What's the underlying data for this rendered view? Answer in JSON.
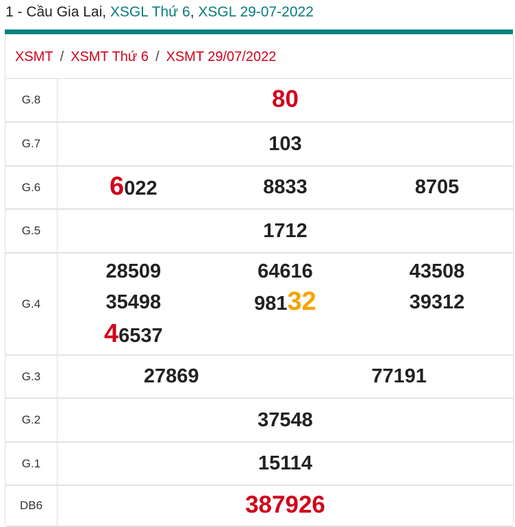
{
  "header": {
    "prefix": "1 - Cầu Gia Lai, ",
    "link1": "XSGL Thứ 6",
    "sep": ", ",
    "link2": "XSGL 29-07-2022"
  },
  "breadcrumb": [
    "XSMT",
    "XSMT Thứ 6",
    "XSMT 29/07/2022"
  ],
  "breadcrumb_sep": "/",
  "colors": {
    "accent": "#0a8282",
    "red": "#d0021b",
    "orange": "#f5a300"
  },
  "prizes": [
    {
      "label": "G.8",
      "cols": 1,
      "h": 64,
      "numbers": [
        [
          {
            "t": "80",
            "s": "big-red"
          }
        ]
      ]
    },
    {
      "label": "G.7",
      "cols": 1,
      "h": 64,
      "numbers": [
        [
          {
            "t": "103"
          }
        ]
      ]
    },
    {
      "label": "G.6",
      "cols": 3,
      "h": 63,
      "numbers": [
        [
          {
            "t": "6",
            "s": "red"
          },
          {
            "t": "022"
          }
        ],
        [
          {
            "t": "8833"
          }
        ],
        [
          {
            "t": "8705"
          }
        ]
      ]
    },
    {
      "label": "G.5",
      "cols": 1,
      "h": 64,
      "numbers": [
        [
          {
            "t": "1712"
          }
        ]
      ]
    },
    {
      "label": "G.4",
      "cols": 3,
      "h": 149,
      "numbers": [
        [
          {
            "t": "28509"
          }
        ],
        [
          {
            "t": "64616"
          }
        ],
        [
          {
            "t": "43508"
          }
        ],
        [
          {
            "t": "35498"
          }
        ],
        [
          {
            "t": "981"
          },
          {
            "t": "32",
            "s": "org"
          }
        ],
        [
          {
            "t": "39312"
          }
        ],
        [
          {
            "t": "4",
            "s": "red"
          },
          {
            "t": "6537"
          }
        ]
      ]
    },
    {
      "label": "G.3",
      "cols": 2,
      "h": 63,
      "numbers": [
        [
          {
            "t": "27869"
          }
        ],
        [
          {
            "t": "77191"
          }
        ]
      ]
    },
    {
      "label": "G.2",
      "cols": 1,
      "h": 64,
      "numbers": [
        [
          {
            "t": "37548"
          }
        ]
      ]
    },
    {
      "label": "G.1",
      "cols": 1,
      "h": 63,
      "numbers": [
        [
          {
            "t": "15114"
          }
        ]
      ]
    },
    {
      "label": "DB6",
      "cols": 1,
      "h": 60,
      "numbers": [
        [
          {
            "t": "387926",
            "s": "big-red"
          }
        ]
      ]
    }
  ]
}
